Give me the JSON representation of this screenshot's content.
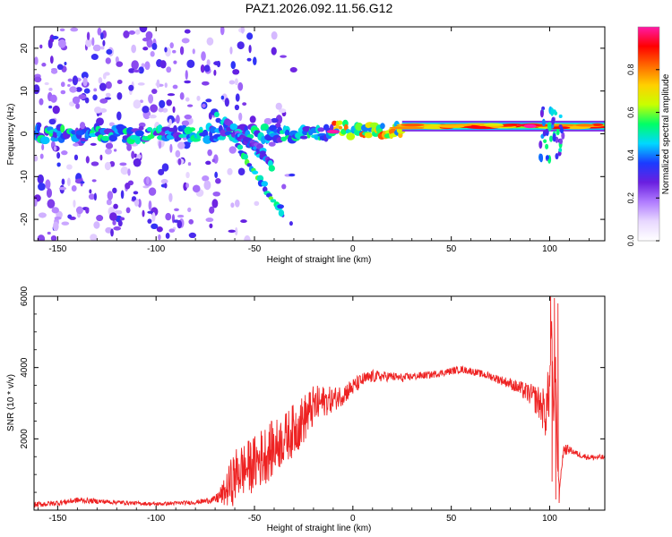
{
  "title": "PAZ1.2026.092.11.56.G12",
  "chart_data": [
    {
      "type": "heatmap",
      "name": "spectrogram",
      "xlabel": "Height of straight line (km)",
      "ylabel": "Frequency (Hz)",
      "xlim": [
        -162,
        128
      ],
      "ylim": [
        -25,
        25
      ],
      "x_ticks": [
        -150,
        -100,
        -50,
        0,
        50,
        100
      ],
      "y_ticks": [
        -20,
        -10,
        0,
        10,
        20
      ],
      "colorbar": {
        "label": "Normalized spectral amplitude",
        "range": [
          0,
          1
        ],
        "ticks": [
          "0.0",
          "0.2",
          "0.4",
          "0.6",
          "0.8"
        ],
        "tick_values": [
          0,
          0.2,
          0.4,
          0.6,
          0.8
        ],
        "colors": [
          "#ffffff",
          "#e8d8ff",
          "#b07cff",
          "#6a1fe0",
          "#1b3bff",
          "#00d8ff",
          "#00ff66",
          "#c8ff00",
          "#ffd000",
          "#ff6a00",
          "#ff0000",
          "#ff1aa8"
        ]
      },
      "features": [
        {
          "kind": "scatter-noise",
          "x_range": [
            -162,
            -30
          ],
          "f_range": [
            -25,
            25
          ],
          "level": 0.15
        },
        {
          "kind": "track",
          "x_range": [
            -162,
            -10
          ],
          "f_center": 0,
          "level": 0.35
        },
        {
          "kind": "diagonal",
          "from": [
            -70,
            5
          ],
          "to": [
            -35,
            -19
          ],
          "level": 0.4
        },
        {
          "kind": "diagonal",
          "from": [
            -65,
            3
          ],
          "to": [
            -40,
            -8
          ],
          "level": 0.35
        },
        {
          "kind": "diagonal",
          "from": [
            -60,
            0
          ],
          "to": [
            -45,
            -4
          ],
          "level": 0.3
        },
        {
          "kind": "track",
          "x_range": [
            -10,
            25
          ],
          "f_center": 1,
          "level": 0.55
        },
        {
          "kind": "band",
          "x_range": [
            25,
            128
          ],
          "f_center": 1.8,
          "level": 0.85
        },
        {
          "kind": "hotspot",
          "x": -10,
          "f": 0.5,
          "level": 1.0
        },
        {
          "kind": "hotspot",
          "x": 90,
          "f": 1.8,
          "level": 1.0
        }
      ]
    },
    {
      "type": "line",
      "name": "snr",
      "xlabel": "Height of straight line (km)",
      "ylabel": "SNR (10 * v/v)",
      "xlim": [
        -162,
        128
      ],
      "ylim": [
        0,
        6000
      ],
      "x_ticks": [
        -150,
        -100,
        -50,
        0,
        50,
        100
      ],
      "y_ticks": [
        2000,
        4000,
        6000
      ],
      "color": "#ee2222",
      "series": [
        {
          "name": "SNR",
          "x": [
            -162,
            -150,
            -140,
            -120,
            -100,
            -80,
            -70,
            -65,
            -62,
            -58,
            -55,
            -50,
            -45,
            -40,
            -35,
            -30,
            -25,
            -20,
            -15,
            -10,
            -5,
            0,
            5,
            10,
            15,
            20,
            25,
            30,
            40,
            50,
            55,
            60,
            70,
            80,
            90,
            95,
            98,
            100,
            101,
            102,
            103,
            104,
            105,
            107,
            110,
            115,
            120,
            128
          ],
          "y": [
            150,
            200,
            280,
            220,
            170,
            220,
            300,
            500,
            750,
            1100,
            1150,
            1300,
            1550,
            1750,
            2000,
            2250,
            2550,
            2900,
            3050,
            3100,
            3250,
            3450,
            3650,
            3750,
            3750,
            3750,
            3700,
            3750,
            3800,
            3900,
            3950,
            3900,
            3750,
            3550,
            3250,
            3000,
            2700,
            3500,
            5300,
            2500,
            4300,
            1200,
            600,
            1700,
            1700,
            1550,
            1480,
            1480
          ],
          "noise": [
            80,
            80,
            80,
            60,
            50,
            60,
            100,
            400,
            700,
            800,
            750,
            800,
            850,
            800,
            700,
            750,
            700,
            600,
            450,
            350,
            300,
            250,
            200,
            180,
            150,
            130,
            120,
            110,
            100,
            100,
            100,
            100,
            110,
            150,
            300,
            500,
            700,
            900,
            0,
            0,
            0,
            0,
            0,
            200,
            100,
            80,
            80,
            80
          ]
        }
      ]
    }
  ]
}
